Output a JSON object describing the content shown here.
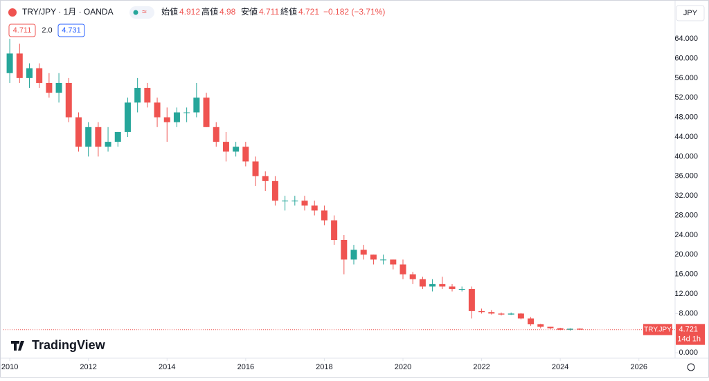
{
  "header": {
    "symbol": "TRY/JPY · 1月 · OANDA",
    "open_label": "始値",
    "open": 4.912,
    "high_label": "高値",
    "high": 4.98,
    "low_label": "安値",
    "low": 4.711,
    "close_label": "終値",
    "close": 4.721,
    "change": "−0.182 (−3.71%)",
    "bid": 4.711,
    "spread": "2.0",
    "ask": 4.731,
    "currency": "JPY"
  },
  "price_label": {
    "name": "TRY.JPY",
    "value": 4.721,
    "countdown": "14d 1h"
  },
  "logo": "TradingView",
  "chart_data": {
    "type": "candlestick",
    "up_color": "#26a69a",
    "down_color": "#ef5350",
    "x": [
      2010,
      2010.25,
      2010.5,
      2010.75,
      2011,
      2011.25,
      2011.5,
      2011.75,
      2012,
      2012.25,
      2012.5,
      2012.75,
      2013,
      2013.25,
      2013.5,
      2013.75,
      2014,
      2014.25,
      2014.5,
      2014.75,
      2015,
      2015.25,
      2015.5,
      2015.75,
      2016,
      2016.25,
      2016.5,
      2016.75,
      2017,
      2017.25,
      2017.5,
      2017.75,
      2018,
      2018.25,
      2018.5,
      2018.75,
      2019,
      2019.25,
      2019.5,
      2019.75,
      2020,
      2020.25,
      2020.5,
      2020.75,
      2021,
      2021.25,
      2021.5,
      2021.75,
      2022,
      2022.25,
      2022.5,
      2022.75,
      2023,
      2023.25,
      2023.5,
      2023.75,
      2024,
      2024.25,
      2024.5
    ],
    "open": [
      57,
      61,
      56,
      58,
      55,
      53,
      55,
      48,
      42,
      46,
      42,
      43,
      45,
      51,
      54,
      51,
      48,
      47,
      49,
      49,
      52,
      46,
      43,
      41,
      42,
      39,
      36,
      35,
      31,
      31,
      31,
      30,
      29,
      27,
      23,
      19,
      21,
      20,
      19,
      19,
      18,
      16,
      15,
      13.5,
      14,
      13.5,
      13,
      13,
      8.5,
      8.3,
      8,
      7.8,
      8,
      7,
      5.8,
      5.3,
      5,
      4.7,
      4.912
    ],
    "high": [
      64,
      63,
      59,
      59,
      57,
      57,
      56,
      49,
      47,
      47,
      46,
      45,
      52,
      56,
      55,
      52,
      50,
      50,
      50,
      55,
      53,
      47,
      45,
      43,
      43,
      40,
      37,
      36,
      32,
      32,
      32,
      31,
      30,
      28,
      24,
      22,
      22,
      20,
      20,
      19,
      19,
      16.5,
      15.5,
      15,
      15.5,
      14,
      13.5,
      13.5,
      9,
      8.7,
      8.2,
      8.2,
      8.1,
      7.3,
      5.9,
      5.3,
      5.1,
      5,
      4.98
    ],
    "low": [
      55,
      55,
      54,
      54,
      52,
      51,
      47,
      41,
      40,
      40,
      41,
      42,
      44,
      49,
      50,
      46,
      43,
      46,
      47,
      48,
      46,
      42,
      39,
      40,
      38,
      34,
      33,
      30,
      29,
      30,
      29,
      28,
      26,
      22,
      16,
      18,
      19,
      18,
      18,
      17,
      15,
      14,
      13,
      12.5,
      13,
      12.5,
      12.5,
      7,
      8,
      7.8,
      7.6,
      7.7,
      6.8,
      5.5,
      5,
      4.8,
      4.6,
      4.5,
      4.711
    ],
    "close": [
      61,
      56,
      58,
      55,
      53,
      55,
      48,
      42,
      46,
      42,
      43,
      45,
      51,
      54,
      51,
      48,
      47,
      49,
      49,
      52,
      46,
      43,
      41,
      42,
      39,
      36,
      35,
      31,
      31,
      31,
      30,
      29,
      27,
      23,
      19,
      21,
      20,
      19,
      19,
      18,
      16,
      15,
      13.5,
      14,
      13.5,
      13,
      13,
      8.5,
      8.3,
      8,
      7.8,
      8,
      7,
      5.8,
      5.3,
      5,
      4.7,
      4.9,
      4.721
    ],
    "xlim": [
      2009.84,
      2026.92
    ],
    "ylim": [
      -1.1,
      71.2
    ],
    "xticks": [
      2010,
      2012,
      2014,
      2016,
      2018,
      2020,
      2022,
      2024,
      2026
    ],
    "yticks": [
      {
        "value": 0,
        "label": "0.000"
      },
      {
        "value": 8,
        "label": "8.000"
      },
      {
        "value": 12,
        "label": "12.000"
      },
      {
        "value": 16,
        "label": "16.000"
      },
      {
        "value": 20,
        "label": "20.000"
      },
      {
        "value": 24,
        "label": "24.000"
      },
      {
        "value": 28,
        "label": "28.000"
      },
      {
        "value": 32,
        "label": "32.000"
      },
      {
        "value": 36,
        "label": "36.000"
      },
      {
        "value": 40,
        "label": "40.000"
      },
      {
        "value": 44,
        "label": "44.000"
      },
      {
        "value": 48,
        "label": "48.000"
      },
      {
        "value": 52,
        "label": "52.000"
      },
      {
        "value": 56,
        "label": "56.000"
      },
      {
        "value": 60,
        "label": "60.000"
      },
      {
        "value": 64,
        "label": "64.000"
      }
    ]
  }
}
